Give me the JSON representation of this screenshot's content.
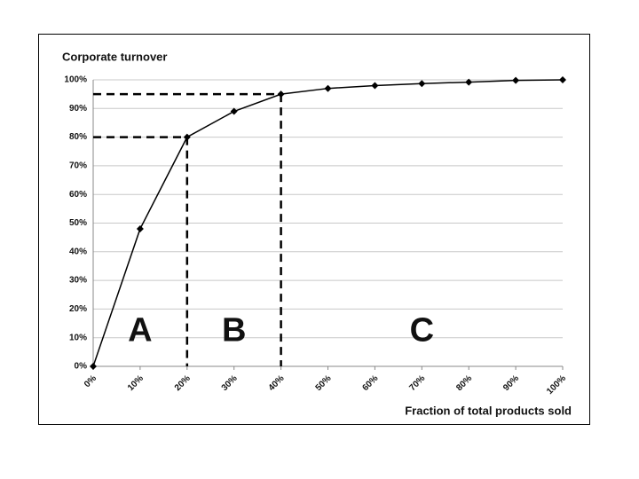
{
  "chart_data": {
    "type": "line",
    "y_label": "Corporate turnover",
    "x_label": "Fraction of total products sold",
    "x": [
      0,
      10,
      20,
      30,
      40,
      50,
      60,
      70,
      80,
      90,
      100
    ],
    "values": [
      0,
      48,
      80,
      89,
      95,
      97,
      98,
      98.7,
      99.2,
      99.8,
      100
    ],
    "color": "#000000",
    "xlim": [
      0,
      100
    ],
    "xticks": [
      {
        "value": 0,
        "label": "0%"
      },
      {
        "value": 10,
        "label": "10%"
      },
      {
        "value": 20,
        "label": "20%"
      },
      {
        "value": 30,
        "label": "30%"
      },
      {
        "value": 40,
        "label": "40%"
      },
      {
        "value": 50,
        "label": "50%"
      },
      {
        "value": 60,
        "label": "60%"
      },
      {
        "value": 70,
        "label": "70%"
      },
      {
        "value": 80,
        "label": "80%"
      },
      {
        "value": 90,
        "label": "90%"
      },
      {
        "value": 100,
        "label": "100%"
      }
    ],
    "ylim": [
      0,
      100
    ],
    "yticks": [
      {
        "value": 0,
        "label": "0%"
      },
      {
        "value": 10,
        "label": "10%"
      },
      {
        "value": 20,
        "label": "20%"
      },
      {
        "value": 30,
        "label": "30%"
      },
      {
        "value": 40,
        "label": "40%"
      },
      {
        "value": 50,
        "label": "50%"
      },
      {
        "value": 60,
        "label": "60%"
      },
      {
        "value": 70,
        "label": "70%"
      },
      {
        "value": 80,
        "label": "80%"
      },
      {
        "value": 90,
        "label": "90%"
      },
      {
        "value": 100,
        "label": "100%"
      }
    ],
    "grid": true,
    "reference_lines": [
      {
        "x": 20,
        "y": 80
      },
      {
        "x": 40,
        "y": 95
      }
    ],
    "annotations": [
      "A",
      "B",
      "C"
    ]
  }
}
